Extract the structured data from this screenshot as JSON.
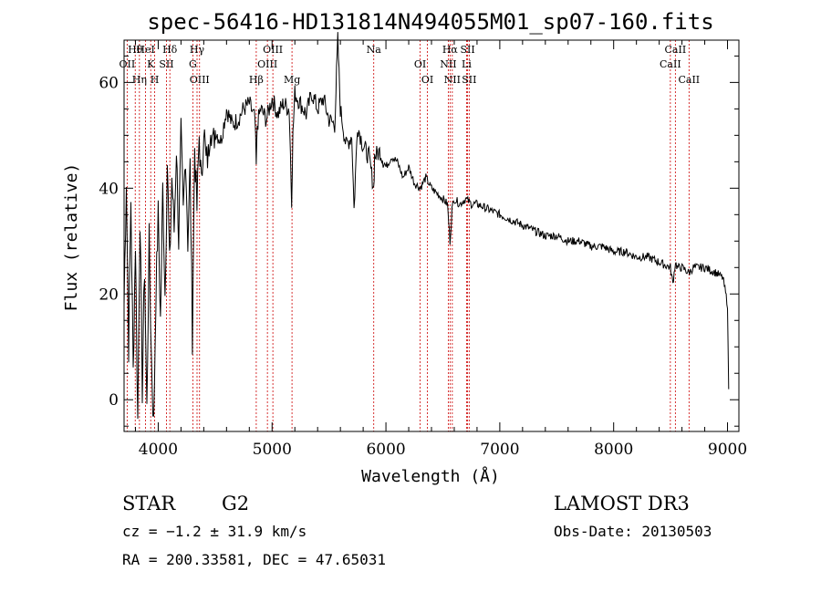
{
  "chart_data": {
    "type": "line",
    "title": "spec-56416-HD131814N494055M01_sp07-160.fits",
    "xlabel": "Wavelength (Å)",
    "ylabel": "Flux (relative)",
    "xlim": [
      3700,
      9100
    ],
    "ylim": [
      -6,
      68
    ],
    "x_ticks": [
      4000,
      5000,
      6000,
      7000,
      8000,
      9000
    ],
    "y_ticks": [
      0,
      20,
      40,
      60
    ],
    "series": [
      {
        "name": "spectrum",
        "x": [
          3700,
          3720,
          3740,
          3760,
          3780,
          3800,
          3820,
          3840,
          3860,
          3880,
          3900,
          3920,
          3940,
          3960,
          3980,
          4000,
          4020,
          4040,
          4060,
          4080,
          4100,
          4120,
          4140,
          4160,
          4180,
          4200,
          4220,
          4240,
          4260,
          4280,
          4300,
          4320,
          4340,
          4360,
          4380,
          4400,
          4420,
          4440,
          4460,
          4480,
          4500,
          4550,
          4600,
          4650,
          4700,
          4750,
          4800,
          4850,
          4861,
          4870,
          4900,
          4950,
          5000,
          5050,
          5100,
          5150,
          5172,
          5183,
          5200,
          5250,
          5300,
          5350,
          5400,
          5450,
          5500,
          5550,
          5577,
          5600,
          5650,
          5700,
          5720,
          5750,
          5800,
          5850,
          5893,
          5900,
          5950,
          6000,
          6050,
          6100,
          6150,
          6200,
          6250,
          6300,
          6350,
          6400,
          6450,
          6500,
          6540,
          6563,
          6580,
          6600,
          6650,
          6700,
          6750,
          6800,
          6900,
          7000,
          7100,
          7200,
          7300,
          7400,
          7500,
          7600,
          7700,
          7800,
          7900,
          8000,
          8100,
          8200,
          8300,
          8400,
          8498,
          8520,
          8542,
          8560,
          8600,
          8662,
          8700,
          8800,
          8900,
          8960,
          9000,
          9010
        ],
        "y": [
          18,
          42,
          10,
          38,
          5,
          30,
          -4,
          35,
          2,
          25,
          -2,
          30,
          8,
          -5,
          20,
          35,
          15,
          40,
          20,
          45,
          25,
          42,
          32,
          48,
          30,
          50,
          35,
          47,
          30,
          44,
          12,
          48,
          36,
          50,
          40,
          52,
          45,
          46,
          53,
          48,
          51,
          49,
          55,
          52,
          53,
          55,
          56,
          53,
          44,
          52,
          55,
          53,
          57,
          54,
          56,
          55,
          38,
          50,
          58,
          56,
          54,
          58,
          55,
          57,
          53,
          52,
          68,
          55,
          48,
          50,
          36,
          52,
          48,
          46,
          40,
          46,
          47,
          44,
          46,
          45,
          42,
          44,
          41,
          40,
          42,
          40,
          39,
          38,
          37,
          30,
          36,
          38,
          37,
          38,
          37,
          37,
          36,
          35,
          34,
          33,
          32,
          31,
          31,
          30,
          30,
          29,
          29,
          28,
          28,
          27,
          27,
          26,
          25,
          22,
          26,
          25,
          25,
          24,
          25,
          25,
          24,
          23,
          18,
          2
        ]
      }
    ],
    "spectral_lines": [
      {
        "name": "Hθ",
        "wavelength": 3798
      },
      {
        "name": "OII",
        "wavelength": 3727
      },
      {
        "name": "Hη",
        "wavelength": 3835
      },
      {
        "name": "HeI",
        "wavelength": 3889
      },
      {
        "name": "K",
        "wavelength": 3934
      },
      {
        "name": "H",
        "wavelength": 3969
      },
      {
        "name": "Hδ",
        "wavelength": 4102
      },
      {
        "name": "SII",
        "wavelength": 4072
      },
      {
        "name": "OIII",
        "wavelength": 4363
      },
      {
        "name": "Hγ",
        "wavelength": 4341
      },
      {
        "name": "G",
        "wavelength": 4304
      },
      {
        "name": "Hβ",
        "wavelength": 4861
      },
      {
        "name": "OIII",
        "wavelength": 5007
      },
      {
        "name": "OIII",
        "wavelength": 4959
      },
      {
        "name": "Mg",
        "wavelength": 5175
      },
      {
        "name": "Na",
        "wavelength": 5893
      },
      {
        "name": "OI",
        "wavelength": 6300
      },
      {
        "name": "OI",
        "wavelength": 6364
      },
      {
        "name": "Hα",
        "wavelength": 6563
      },
      {
        "name": "NII",
        "wavelength": 6548
      },
      {
        "name": "NII",
        "wavelength": 6583
      },
      {
        "name": "SII",
        "wavelength": 6717
      },
      {
        "name": "Li",
        "wavelength": 6708
      },
      {
        "name": "SII",
        "wavelength": 6731
      },
      {
        "name": "CaII",
        "wavelength": 8542
      },
      {
        "name": "CaII",
        "wavelength": 8498
      },
      {
        "name": "CaII",
        "wavelength": 8662
      }
    ]
  },
  "info": {
    "object_class": "STAR",
    "subclass": "G2",
    "survey": "LAMOST DR3",
    "redshift_text": "cz = −1.2 ± 31.9 km/s",
    "obs_date": "Obs-Date: 20130503",
    "coordinates": "RA = 200.33581, DEC =  47.65031"
  }
}
